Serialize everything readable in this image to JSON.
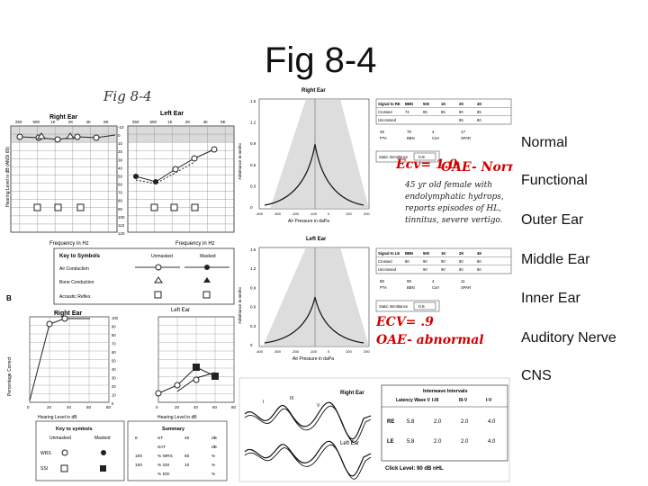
{
  "slide": {
    "title": "Fig 8-4",
    "topics": [
      "Normal",
      "Functional",
      "Outer Ear",
      "Middle Ear",
      "Inner Ear",
      "Auditory Nerve",
      "CNS"
    ]
  },
  "figure": {
    "handwritten_caption": "Fig 8-4",
    "audiogram_top": {
      "right_ear_label": "Right Ear",
      "left_ear_label": "Left Ear",
      "freq_labels": [
        "250",
        "500",
        "1K",
        "2K",
        "4K",
        "8K"
      ],
      "db_scale": [
        "-10",
        "0",
        "10",
        "20",
        "30",
        "40",
        "50",
        "60",
        "70",
        "80",
        "90",
        "100",
        "110",
        "120"
      ],
      "y_axis_label": "Hearing Level in dB (ANSI 69)",
      "x_axis_label": "Frequency in Hz"
    },
    "symbols_key": {
      "title": "Key to Symbols",
      "col_unmasked": "Unmasked",
      "col_masked": "Masked",
      "rows": [
        "Air Conduction",
        "Bone Conduction",
        "Acoustic Reflex"
      ]
    },
    "tymp_right": {
      "title": "Right Ear",
      "y_ticks": [
        "1.5",
        "1.2",
        "0.9",
        "0.6",
        "0.3",
        "0"
      ],
      "x_ticks": [
        "-400",
        "-300",
        "-200",
        "-100",
        "0",
        "100",
        "200"
      ],
      "x_label": "Air Pressure in daPa",
      "y_label": "Admittance in mmho",
      "reflex_header": [
        "Signal to RE",
        "BBN",
        "500",
        "1K",
        "2K",
        "4K"
      ],
      "reflex_rows": [
        [
          "Crossed",
          "72",
          "85",
          "85",
          "80",
          "85"
        ],
        [
          "Uncrossed",
          "",
          "",
          "",
          "85",
          "80"
        ]
      ],
      "pta_values": [
        "45",
        "70",
        "4",
        "17"
      ],
      "pta_labels": [
        "PTA",
        "BBN",
        "Corr",
        "SPAR"
      ],
      "static_label": "Static Immittance",
      "static_value": "0.9"
    },
    "tymp_left": {
      "title": "Left Ear",
      "y_ticks": [
        "1.5",
        "1.2",
        "0.9",
        "0.6",
        "0.3",
        "0"
      ],
      "x_ticks": [
        "-400",
        "-300",
        "-200",
        "-100",
        "0",
        "100",
        "200"
      ],
      "x_label": "Air Pressure in daPa",
      "y_label": "Admittance in mmho",
      "reflex_header": [
        "Signal to LE",
        "BBN",
        "500",
        "1K",
        "2K",
        "4K"
      ],
      "reflex_rows": [
        [
          "Crossed",
          "80",
          "90",
          "90",
          "80",
          "80"
        ],
        [
          "Uncrossed",
          "",
          "90",
          "90",
          "80",
          "80"
        ]
      ],
      "pta_values": [
        "80",
        "90",
        "4",
        "11"
      ],
      "pta_labels": [
        "PTA",
        "BBN",
        "Corr",
        "SPAR"
      ],
      "static_label": "Static Immittance",
      "static_value": "0.5"
    },
    "annotations": {
      "ecv_right": "Ecv= 1.0",
      "oae_right": "OAE- Normal",
      "ecv_left": "ECV= .9",
      "oae_left": "OAE- abnormal",
      "case_note": [
        "45 yr old female with",
        "endolymphatic hydrops,",
        "reports episodes of HL,",
        "tinnitus, severe vertigo."
      ]
    },
    "speech": {
      "panel_label": "B",
      "right_ear_label": "Right Ear",
      "left_ear_label": "Left Ear",
      "y_axis_label": "Percentage Correct",
      "x_axis_label": "Hearing Level in dB",
      "y_ticks": [
        "100",
        "90",
        "80",
        "70",
        "60",
        "50",
        "40",
        "30",
        "20",
        "10",
        "0"
      ],
      "x_ticks": [
        "0",
        "20",
        "40",
        "60",
        "80"
      ],
      "key_title": "Key to symbols",
      "key_cols": [
        "Unmasked",
        "Masked"
      ],
      "key_rows": [
        "WRS",
        "SSI"
      ],
      "summary_title": "Summary",
      "summary_rows": [
        [
          "8",
          "ST",
          "40",
          "dB"
        ],
        [
          "",
          "SAT",
          "",
          "dB"
        ],
        [
          "100",
          "% WRS",
          "60",
          "%"
        ],
        [
          "100",
          "% SSI",
          "10",
          "%"
        ],
        [
          "",
          "% DSI",
          "",
          "%"
        ]
      ]
    },
    "abr": {
      "right_ear_label": "Right Ear",
      "left_ear_label": "Left Ear",
      "wave_labels": [
        "I",
        "III",
        "V"
      ],
      "table_header": [
        "Latency Wave V",
        "I-III",
        "III-V",
        "I-V"
      ],
      "interwave_title": "Interwave Intervals",
      "rows": [
        [
          "RE",
          "5.8",
          "2.0",
          "2.0",
          "4.0"
        ],
        [
          "LE",
          "5.8",
          "2.0",
          "2.0",
          "4.0"
        ]
      ],
      "click_level": "Click Level: 90 dB nHL"
    }
  }
}
